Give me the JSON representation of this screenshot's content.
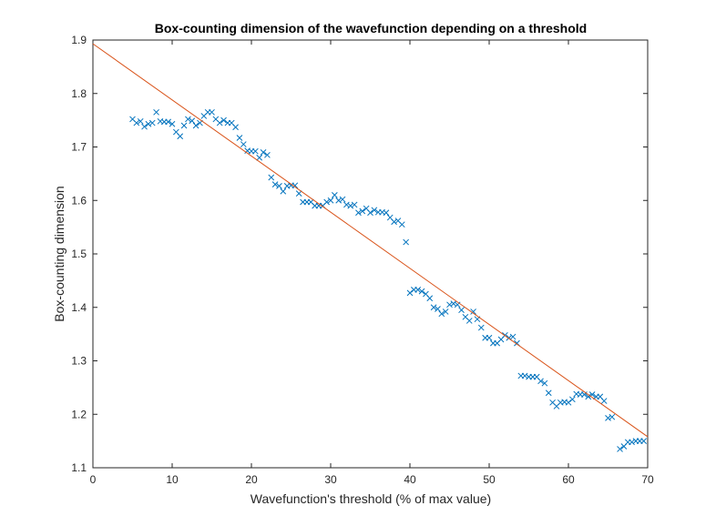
{
  "chart_data": {
    "type": "scatter",
    "title": "Box-counting dimension of the wavefunction depending on a threshold",
    "xlabel": "Wavefunction's threshold (% of max value)",
    "ylabel": "Box-counting dimension",
    "xlim": [
      0,
      70
    ],
    "ylim": [
      1.1,
      1.9
    ],
    "xticks": [
      0,
      10,
      20,
      30,
      40,
      50,
      60,
      70
    ],
    "xtick_labels": [
      "0",
      "10",
      "20",
      "30",
      "40",
      "50",
      "60",
      "70"
    ],
    "yticks": [
      1.1,
      1.2,
      1.3,
      1.4,
      1.5,
      1.6,
      1.7,
      1.8,
      1.9
    ],
    "ytick_labels": [
      "1.1",
      "1.2",
      "1.3",
      "1.4",
      "1.5",
      "1.6",
      "1.7",
      "1.8",
      "1.9"
    ],
    "grid": false,
    "legend": "none",
    "series": [
      {
        "marker": "x",
        "color": "#0072BD",
        "points": [
          [
            5.0,
            1.752
          ],
          [
            5.5,
            1.745
          ],
          [
            6.0,
            1.748
          ],
          [
            6.5,
            1.738
          ],
          [
            7.0,
            1.743
          ],
          [
            7.5,
            1.745
          ],
          [
            8.0,
            1.765
          ],
          [
            8.5,
            1.748
          ],
          [
            9.0,
            1.747
          ],
          [
            9.5,
            1.747
          ],
          [
            10.0,
            1.743
          ],
          [
            10.5,
            1.728
          ],
          [
            11.0,
            1.72
          ],
          [
            11.5,
            1.74
          ],
          [
            12.0,
            1.752
          ],
          [
            12.5,
            1.749
          ],
          [
            13.0,
            1.74
          ],
          [
            13.5,
            1.745
          ],
          [
            14.0,
            1.758
          ],
          [
            14.5,
            1.765
          ],
          [
            15.0,
            1.765
          ],
          [
            15.5,
            1.752
          ],
          [
            16.0,
            1.745
          ],
          [
            16.5,
            1.75
          ],
          [
            17.0,
            1.745
          ],
          [
            17.5,
            1.745
          ],
          [
            18.0,
            1.737
          ],
          [
            18.5,
            1.717
          ],
          [
            19.0,
            1.705
          ],
          [
            19.5,
            1.693
          ],
          [
            20.0,
            1.692
          ],
          [
            20.5,
            1.692
          ],
          [
            21.0,
            1.68
          ],
          [
            21.5,
            1.69
          ],
          [
            22.0,
            1.685
          ],
          [
            22.5,
            1.643
          ],
          [
            23.0,
            1.63
          ],
          [
            23.5,
            1.627
          ],
          [
            24.0,
            1.617
          ],
          [
            24.5,
            1.627
          ],
          [
            25.0,
            1.628
          ],
          [
            25.5,
            1.628
          ],
          [
            26.0,
            1.613
          ],
          [
            26.5,
            1.597
          ],
          [
            27.0,
            1.597
          ],
          [
            27.5,
            1.597
          ],
          [
            28.0,
            1.59
          ],
          [
            28.5,
            1.59
          ],
          [
            29.0,
            1.59
          ],
          [
            29.5,
            1.597
          ],
          [
            30.0,
            1.6
          ],
          [
            30.5,
            1.61
          ],
          [
            31.0,
            1.6
          ],
          [
            31.5,
            1.602
          ],
          [
            32.0,
            1.592
          ],
          [
            32.5,
            1.59
          ],
          [
            33.0,
            1.592
          ],
          [
            33.5,
            1.577
          ],
          [
            34.0,
            1.58
          ],
          [
            34.5,
            1.585
          ],
          [
            35.0,
            1.577
          ],
          [
            35.5,
            1.582
          ],
          [
            36.0,
            1.578
          ],
          [
            36.5,
            1.578
          ],
          [
            37.0,
            1.577
          ],
          [
            37.5,
            1.568
          ],
          [
            38.0,
            1.56
          ],
          [
            38.5,
            1.562
          ],
          [
            39.0,
            1.555
          ],
          [
            39.5,
            1.522
          ],
          [
            40.0,
            1.427
          ],
          [
            40.5,
            1.433
          ],
          [
            41.0,
            1.433
          ],
          [
            41.5,
            1.43
          ],
          [
            42.0,
            1.425
          ],
          [
            42.5,
            1.417
          ],
          [
            43.0,
            1.4
          ],
          [
            43.5,
            1.397
          ],
          [
            44.0,
            1.388
          ],
          [
            44.5,
            1.392
          ],
          [
            45.0,
            1.405
          ],
          [
            45.5,
            1.407
          ],
          [
            46.0,
            1.405
          ],
          [
            46.5,
            1.395
          ],
          [
            47.0,
            1.382
          ],
          [
            47.5,
            1.375
          ],
          [
            48.0,
            1.392
          ],
          [
            48.5,
            1.378
          ],
          [
            49.0,
            1.362
          ],
          [
            49.5,
            1.343
          ],
          [
            50.0,
            1.343
          ],
          [
            50.5,
            1.333
          ],
          [
            51.0,
            1.333
          ],
          [
            51.5,
            1.34
          ],
          [
            52.0,
            1.348
          ],
          [
            52.5,
            1.343
          ],
          [
            53.0,
            1.345
          ],
          [
            53.5,
            1.333
          ],
          [
            54.0,
            1.272
          ],
          [
            54.5,
            1.272
          ],
          [
            55.0,
            1.27
          ],
          [
            55.5,
            1.27
          ],
          [
            56.0,
            1.27
          ],
          [
            56.5,
            1.262
          ],
          [
            57.0,
            1.258
          ],
          [
            57.5,
            1.24
          ],
          [
            58.0,
            1.222
          ],
          [
            58.5,
            1.215
          ],
          [
            59.0,
            1.222
          ],
          [
            59.5,
            1.223
          ],
          [
            60.0,
            1.222
          ],
          [
            60.5,
            1.228
          ],
          [
            61.0,
            1.238
          ],
          [
            61.5,
            1.237
          ],
          [
            62.0,
            1.237
          ],
          [
            62.5,
            1.233
          ],
          [
            63.0,
            1.237
          ],
          [
            63.5,
            1.233
          ],
          [
            64.0,
            1.233
          ],
          [
            64.5,
            1.225
          ],
          [
            65.0,
            1.193
          ],
          [
            65.5,
            1.195
          ],
          [
            66.5,
            1.135
          ],
          [
            67.0,
            1.14
          ],
          [
            67.5,
            1.148
          ],
          [
            68.0,
            1.148
          ],
          [
            68.5,
            1.15
          ],
          [
            69.0,
            1.15
          ],
          [
            69.5,
            1.15
          ]
        ]
      },
      {
        "type": "line",
        "color": "#D95319",
        "points": [
          [
            0,
            1.893
          ],
          [
            70,
            1.158
          ]
        ]
      }
    ]
  }
}
